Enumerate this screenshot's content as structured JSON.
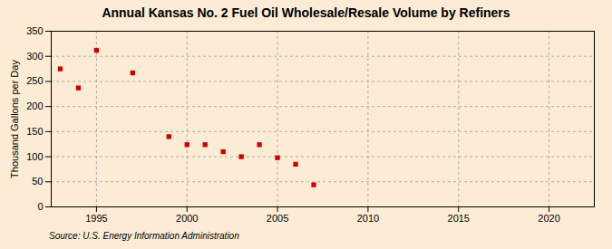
{
  "chart_data": {
    "type": "scatter",
    "title": "Annual Kansas No. 2 Fuel Oil Wholesale/Resale Volume by Refiners",
    "ylabel": "Thousand Gallons per Day",
    "source": "Source: U.S. Energy Information Administration",
    "x": [
      1993,
      1994,
      1995,
      1997,
      1999,
      2000,
      2001,
      2002,
      2003,
      2004,
      2005,
      2006,
      2007
    ],
    "values": [
      275,
      237,
      312,
      267,
      140,
      124,
      124,
      110,
      100,
      124,
      98,
      85,
      44
    ],
    "color": "#cc0000",
    "marker": "square",
    "xlim": [
      1992.5,
      2022.5
    ],
    "ylim": [
      0,
      350
    ],
    "xticks": [
      1995,
      2000,
      2005,
      2010,
      2015,
      2020
    ],
    "yticks": [
      0,
      50,
      100,
      150,
      200,
      250,
      300,
      350
    ],
    "grid": true
  }
}
